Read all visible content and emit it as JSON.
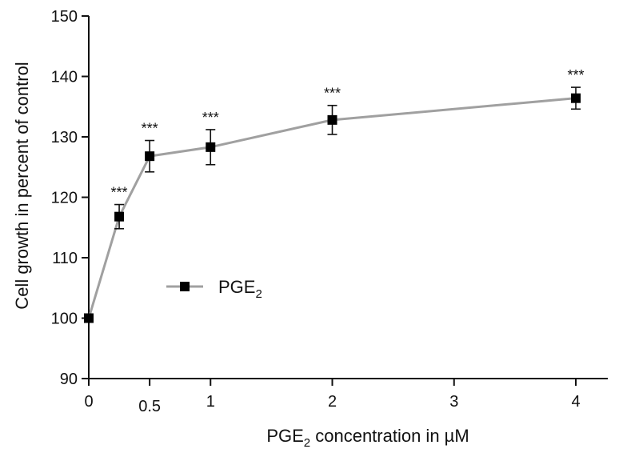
{
  "chart_data": {
    "type": "line",
    "xlabel": {
      "main": "PGE",
      "sub": "2",
      "rest": " concentration in µM"
    },
    "ylabel": "Cell growth in percent of control",
    "xlim": [
      0,
      4
    ],
    "ylim": [
      90,
      150
    ],
    "x_ticks": [
      {
        "value": 0,
        "label": "0"
      },
      {
        "value": 0.5,
        "label": "0.5"
      },
      {
        "value": 1,
        "label": "1"
      },
      {
        "value": 2,
        "label": "2"
      },
      {
        "value": 3,
        "label": "3"
      },
      {
        "value": 4,
        "label": "4"
      }
    ],
    "y_ticks": [
      {
        "value": 90,
        "label": "90"
      },
      {
        "value": 100,
        "label": "100"
      },
      {
        "value": 110,
        "label": "110"
      },
      {
        "value": 120,
        "label": "120"
      },
      {
        "value": 130,
        "label": "130"
      },
      {
        "value": 140,
        "label": "140"
      },
      {
        "value": 150,
        "label": "150"
      }
    ],
    "grid": false,
    "legend": {
      "position": "center-left",
      "label_main": "PGE",
      "label_sub": "2"
    },
    "series": [
      {
        "name": "PGE2",
        "line_color": "#a0a0a0",
        "marker_color": "#000000",
        "points": [
          {
            "x": 0,
            "y": 100,
            "err": 0,
            "sig": ""
          },
          {
            "x": 0.25,
            "y": 116.8,
            "err": 2.0,
            "sig": "***"
          },
          {
            "x": 0.5,
            "y": 126.8,
            "err": 2.6,
            "sig": "***"
          },
          {
            "x": 1,
            "y": 128.3,
            "err": 2.9,
            "sig": "***"
          },
          {
            "x": 2,
            "y": 132.8,
            "err": 2.4,
            "sig": "***"
          },
          {
            "x": 4,
            "y": 136.4,
            "err": 1.8,
            "sig": "***"
          }
        ]
      }
    ]
  }
}
